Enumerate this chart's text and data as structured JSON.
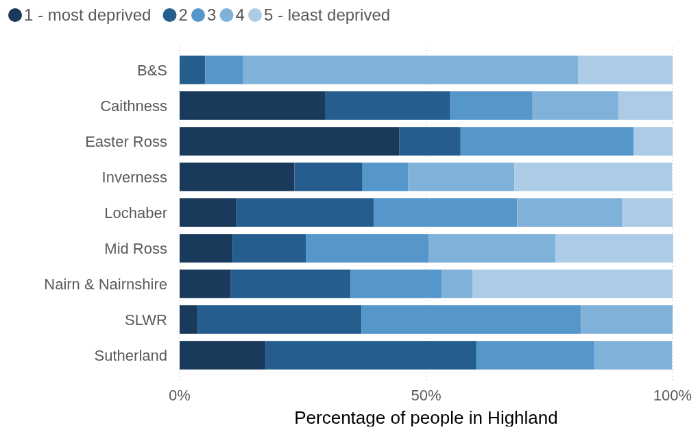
{
  "chart_data": {
    "type": "bar",
    "orientation": "horizontal",
    "stacked": true,
    "xlabel": "Percentage of people in Highland",
    "categories": [
      "B&S",
      "Caithness",
      "Easter Ross",
      "Inverness",
      "Lochaber",
      "Mid Ross",
      "Nairn & Nairnshire",
      "SLWR",
      "Sutherland"
    ],
    "series": [
      {
        "name": "1 - most deprived",
        "color": "#1a3a5c",
        "values": [
          0,
          29.6,
          44.6,
          23.3,
          11.5,
          10.8,
          10.4,
          3.6,
          17.4
        ]
      },
      {
        "name": "2",
        "color": "#245d8e",
        "values": [
          5.2,
          25.3,
          12.4,
          13.8,
          27.9,
          14.8,
          24.3,
          33.3,
          42.8
        ]
      },
      {
        "name": "3",
        "color": "#5596cb",
        "values": [
          7.6,
          16.7,
          35.1,
          9.3,
          29.1,
          24.9,
          18.5,
          44.5,
          24.0
        ]
      },
      {
        "name": "4",
        "color": "#80b1d9",
        "values": [
          68.1,
          17.4,
          0,
          21.5,
          21.3,
          25.8,
          6.2,
          18.6,
          15.7
        ]
      },
      {
        "name": "5 - least deprived",
        "color": "#abcbe6",
        "values": [
          19.1,
          11.0,
          7.9,
          32.0,
          10.2,
          23.8,
          40.6,
          0,
          0
        ]
      }
    ],
    "xlim": [
      0,
      100
    ],
    "xticks": [
      {
        "value": 0,
        "label": "0%"
      },
      {
        "value": 50,
        "label": "50%"
      },
      {
        "value": 100,
        "label": "100%"
      }
    ],
    "grid": "x",
    "legend": "top left"
  }
}
